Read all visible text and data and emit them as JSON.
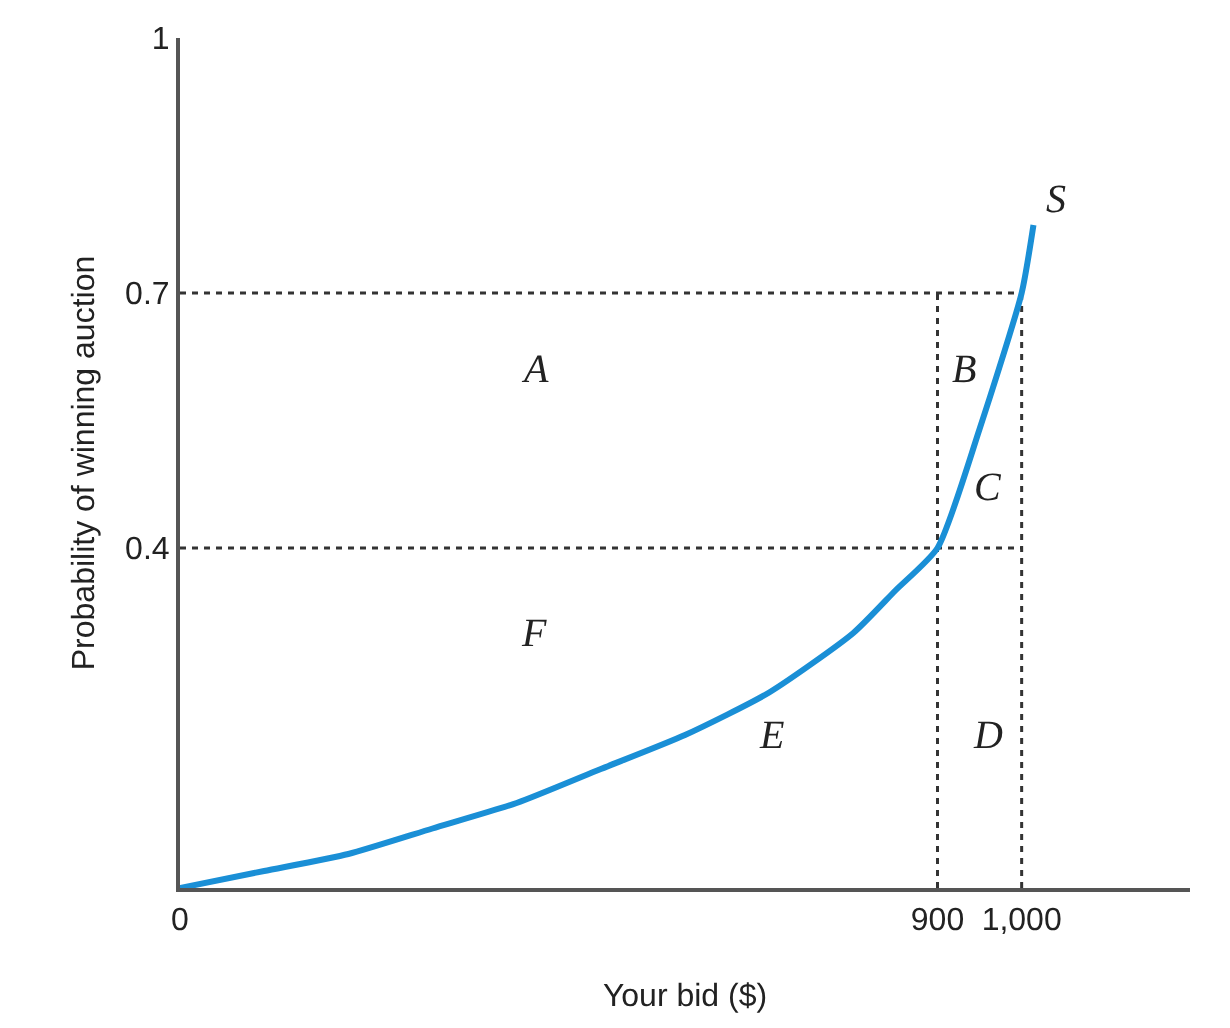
{
  "chart_data": {
    "type": "line",
    "xlabel": "Your bid ($)",
    "ylabel": "Probability of winning auction",
    "xlim": [
      0,
      1200
    ],
    "ylim": [
      0,
      1
    ],
    "xticks": [
      0,
      900,
      {
        "value": 1000,
        "label": "1,000"
      }
    ],
    "yticks": [
      0.4,
      0.7,
      1
    ],
    "grid": false,
    "marker": "none",
    "line_style": "solid",
    "series": [
      {
        "color": "#1a8fd6",
        "x": [
          0,
          100,
          200,
          300,
          400,
          500,
          600,
          700,
          800,
          850,
          900,
          950,
          1000,
          1014
        ],
        "values": [
          0,
          0.02,
          0.04,
          0.07,
          0.1,
          0.14,
          0.18,
          0.23,
          0.3,
          0.35,
          0.4,
          0.54,
          0.7,
          0.78
        ]
      }
    ],
    "ref_lines": [
      {
        "axis": "y",
        "value": 0.4,
        "line_style": "dotted",
        "color": "#333333"
      },
      {
        "axis": "y",
        "value": 0.7,
        "line_style": "dotted",
        "color": "#333333"
      },
      {
        "axis": "x",
        "value": 900,
        "line_style": "dotted",
        "color": "#333333"
      },
      {
        "axis": "x",
        "value": 1000,
        "line_style": "dotted",
        "color": "#333333"
      }
    ],
    "annotations": [
      {
        "text": "S",
        "x": 1014,
        "y": 0.78
      },
      "A",
      "B",
      "C",
      "D",
      "E",
      "F"
    ]
  }
}
